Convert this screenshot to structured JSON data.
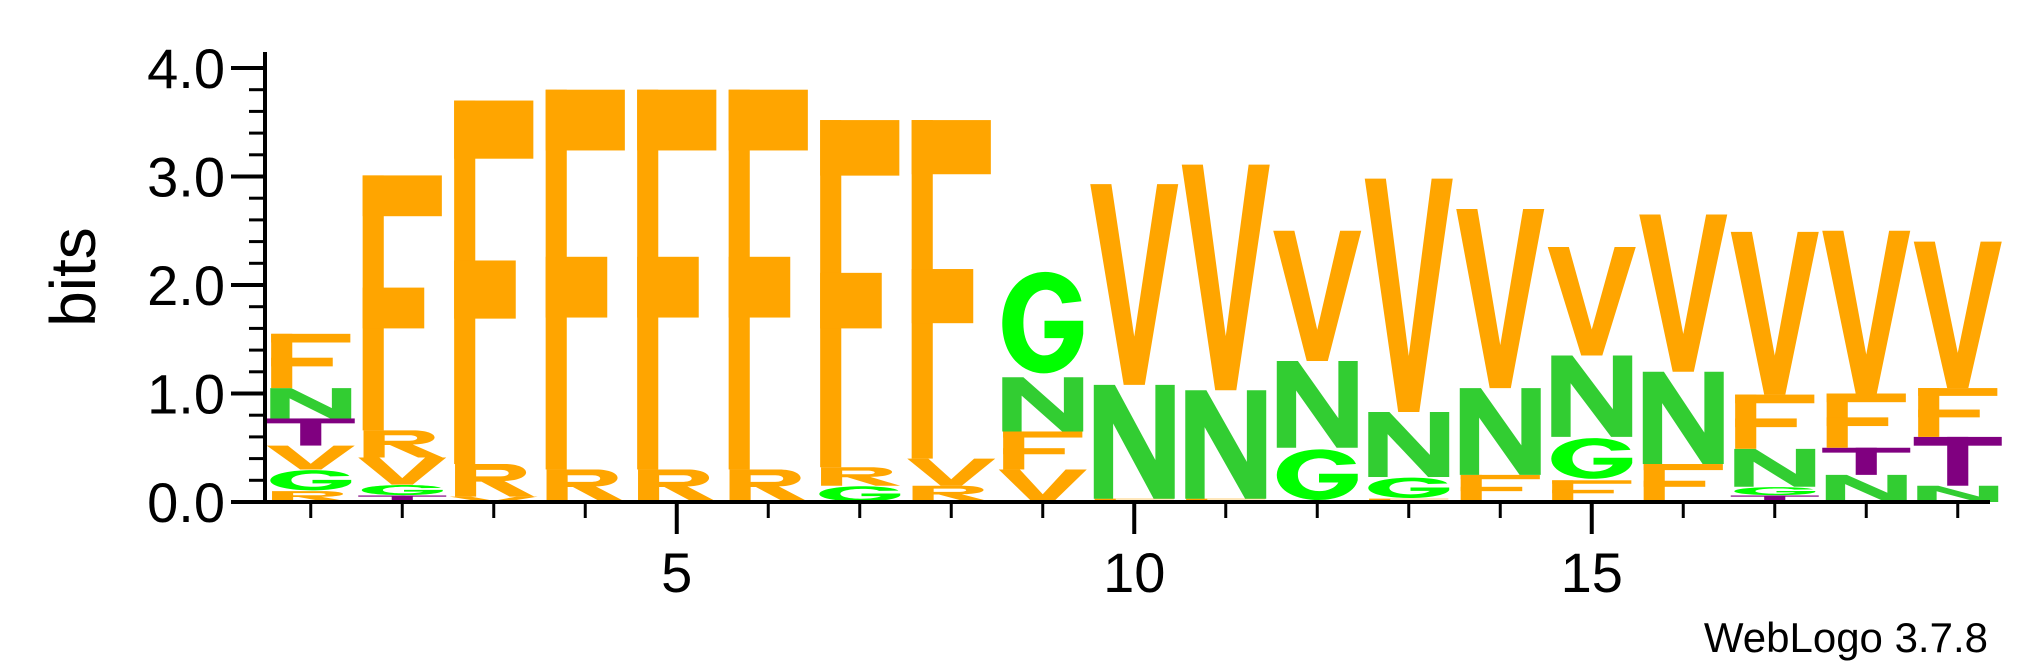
{
  "chart_data": {
    "type": "sequence_logo",
    "ylabel": "bits",
    "ylim": [
      0,
      4.0
    ],
    "y_ticks": [
      "0.0",
      "1.0",
      "2.0",
      "3.0",
      "4.0"
    ],
    "x_ticks": [
      "5",
      "10",
      "15"
    ],
    "x_tick_positions": [
      5,
      10,
      15
    ],
    "credit": "WebLogo 3.7.8",
    "colors": {
      "hydrophobic": "#ffa500",
      "polar": "#32cd32",
      "glycine": "#00ff00",
      "threonine": "#800080"
    },
    "letter_colors": {
      "F": "#ffa500",
      "V": "#ffa500",
      "R": "#ffa500",
      "N": "#32cd32",
      "G": "#00ff00",
      "T": "#800080"
    },
    "positions": [
      [
        {
          "l": "R",
          "h": 0.1
        },
        {
          "l": "G",
          "h": 0.2
        },
        {
          "l": "V",
          "h": 0.22
        },
        {
          "l": "T",
          "h": 0.25
        },
        {
          "l": "N",
          "h": 0.28
        },
        {
          "l": "F",
          "h": 0.5
        }
      ],
      [
        {
          "l": "T",
          "h": 0.06
        },
        {
          "l": "G",
          "h": 0.1
        },
        {
          "l": "V",
          "h": 0.25
        },
        {
          "l": "R",
          "h": 0.25
        },
        {
          "l": "F",
          "h": 2.35
        }
      ],
      [
        {
          "l": "V",
          "h": 0.05
        },
        {
          "l": "R",
          "h": 0.3
        },
        {
          "l": "F",
          "h": 3.35
        }
      ],
      [
        {
          "l": "R",
          "h": 0.3
        },
        {
          "l": "F",
          "h": 3.5
        }
      ],
      [
        {
          "l": "R",
          "h": 0.3
        },
        {
          "l": "F",
          "h": 3.5
        }
      ],
      [
        {
          "l": "R",
          "h": 0.3
        },
        {
          "l": "F",
          "h": 3.5
        }
      ],
      [
        {
          "l": "G",
          "h": 0.15
        },
        {
          "l": "R",
          "h": 0.17
        },
        {
          "l": "F",
          "h": 3.2
        }
      ],
      [
        {
          "l": "R",
          "h": 0.15
        },
        {
          "l": "V",
          "h": 0.25
        },
        {
          "l": "F",
          "h": 3.12
        }
      ],
      [
        {
          "l": "V",
          "h": 0.3
        },
        {
          "l": "F",
          "h": 0.35
        },
        {
          "l": "N",
          "h": 0.5
        },
        {
          "l": "G",
          "h": 1.0
        }
      ],
      [
        {
          "l": "F",
          "h": 0.03
        },
        {
          "l": "N",
          "h": 1.05
        },
        {
          "l": "V",
          "h": 1.85
        }
      ],
      [
        {
          "l": "F",
          "h": 0.03
        },
        {
          "l": "N",
          "h": 1.0
        },
        {
          "l": "V",
          "h": 2.08
        }
      ],
      [
        {
          "l": "G",
          "h": 0.5
        },
        {
          "l": "N",
          "h": 0.8
        },
        {
          "l": "V",
          "h": 1.2
        }
      ],
      [
        {
          "l": "F",
          "h": 0.03
        },
        {
          "l": "G",
          "h": 0.2
        },
        {
          "l": "N",
          "h": 0.6
        },
        {
          "l": "V",
          "h": 2.15
        }
      ],
      [
        {
          "l": "F",
          "h": 0.25
        },
        {
          "l": "N",
          "h": 0.8
        },
        {
          "l": "V",
          "h": 1.65
        }
      ],
      [
        {
          "l": "F",
          "h": 0.2
        },
        {
          "l": "G",
          "h": 0.4
        },
        {
          "l": "N",
          "h": 0.75
        },
        {
          "l": "V",
          "h": 1.0
        }
      ],
      [
        {
          "l": "F",
          "h": 0.35
        },
        {
          "l": "N",
          "h": 0.85
        },
        {
          "l": "V",
          "h": 1.45
        }
      ],
      [
        {
          "l": "T",
          "h": 0.06
        },
        {
          "l": "G",
          "h": 0.08
        },
        {
          "l": "N",
          "h": 0.35
        },
        {
          "l": "F",
          "h": 0.5
        },
        {
          "l": "V",
          "h": 1.5
        }
      ],
      [
        {
          "l": "N",
          "h": 0.25
        },
        {
          "l": "T",
          "h": 0.25
        },
        {
          "l": "F",
          "h": 0.5
        },
        {
          "l": "V",
          "h": 1.5
        }
      ],
      [
        {
          "l": "N",
          "h": 0.15
        },
        {
          "l": "T",
          "h": 0.45
        },
        {
          "l": "F",
          "h": 0.45
        },
        {
          "l": "V",
          "h": 1.35
        }
      ]
    ]
  }
}
